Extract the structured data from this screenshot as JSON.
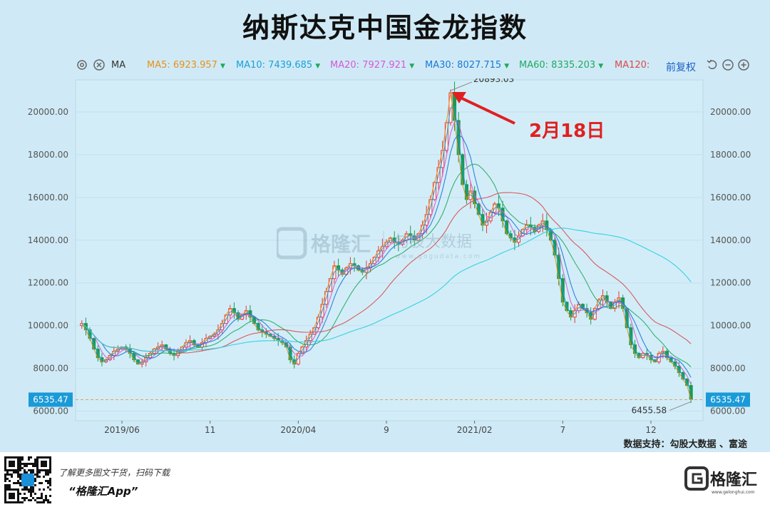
{
  "title": "纳斯达克中国金龙指数",
  "toolbar": {
    "ma_label": "MA",
    "items": [
      {
        "label": "MA5:",
        "value": "6923.957",
        "color": "#e8901a"
      },
      {
        "label": "MA10:",
        "value": "7439.685",
        "color": "#1aa0d8"
      },
      {
        "label": "MA20:",
        "value": "7927.921",
        "color": "#d45ad8"
      },
      {
        "label": "MA30:",
        "value": "8027.715",
        "color": "#1a78d8"
      },
      {
        "label": "MA60:",
        "value": "8335.203",
        "color": "#22a860"
      },
      {
        "label": "MA120:",
        "value": "",
        "color": "#d84a4a"
      }
    ],
    "fuquan": "前复权",
    "icons": [
      "gear-icon",
      "close-icon",
      "undo-icon",
      "zoom-out-icon",
      "zoom-in-icon"
    ]
  },
  "chart_data": {
    "type": "candlestick-line",
    "y_ticks": [
      "20000.00",
      "18000.00",
      "16000.00",
      "14000.00",
      "12000.00",
      "10000.00",
      "8000.00",
      "6000.00"
    ],
    "y_tick_values": [
      20000,
      18000,
      16000,
      14000,
      12000,
      10000,
      8000,
      6000
    ],
    "ylim": [
      5550,
      21500
    ],
    "x_ticks": [
      {
        "label": "2019/06",
        "index": 10
      },
      {
        "label": "11",
        "index": 32
      },
      {
        "label": "2020/04",
        "index": 54
      },
      {
        "label": "9",
        "index": 76
      },
      {
        "label": "2021/02",
        "index": 98
      },
      {
        "label": "7",
        "index": 120
      },
      {
        "label": "12",
        "index": 142
      }
    ],
    "high_label": "20893.03",
    "low_label": "6455.58",
    "current_price": 6535.47,
    "current_label": "6535.47",
    "annotation": "2月18日",
    "series_close": [
      10100,
      9800,
      9400,
      8900,
      8500,
      8300,
      8400,
      8600,
      8800,
      8900,
      9000,
      8900,
      8700,
      8400,
      8200,
      8300,
      8500,
      8700,
      8900,
      9000,
      9100,
      8900,
      8700,
      8600,
      8800,
      9000,
      9200,
      9300,
      9100,
      9000,
      9200,
      9400,
      9500,
      9600,
      9800,
      10100,
      10500,
      10800,
      10600,
      10300,
      10500,
      10700,
      10400,
      10100,
      9800,
      9700,
      9600,
      9500,
      9400,
      9300,
      9200,
      9000,
      8400,
      8200,
      8700,
      9000,
      9300,
      9600,
      9900,
      10400,
      11000,
      11600,
      12200,
      12800,
      12600,
      12400,
      12700,
      12900,
      12800,
      12600,
      12500,
      12700,
      12900,
      13200,
      13500,
      13700,
      13900,
      14100,
      13900,
      13800,
      14000,
      14300,
      14200,
      14000,
      14300,
      14700,
      15200,
      15900,
      16700,
      17400,
      18200,
      19500,
      20893,
      19600,
      18000,
      16600,
      15900,
      16300,
      15700,
      15200,
      14700,
      14900,
      15300,
      15700,
      15500,
      14900,
      14300,
      14100,
      13900,
      14200,
      14500,
      14700,
      14600,
      14400,
      14700,
      14900,
      14500,
      14000,
      13300,
      12200,
      11100,
      10700,
      10400,
      10700,
      11000,
      10800,
      10600,
      10300,
      10800,
      11200,
      11400,
      11100,
      10800,
      11100,
      11300,
      10800,
      9900,
      9100,
      8700,
      8500,
      8700,
      8600,
      8400,
      8300,
      8700,
      8800,
      8500,
      8300,
      8100,
      7800,
      7500,
      7200,
      6535
    ]
  },
  "footer": {
    "source": "数据支持：勾股大数据 、富途",
    "promo_line": "了解更多图文干货，扫码下载",
    "promo_app": "“格隆汇App”",
    "brand": "格隆汇",
    "brand_url": "www.gelonghui.com"
  },
  "watermark": {
    "brand": "格隆汇",
    "sub": "勾股大数据",
    "url": "www.gogudata.com"
  }
}
